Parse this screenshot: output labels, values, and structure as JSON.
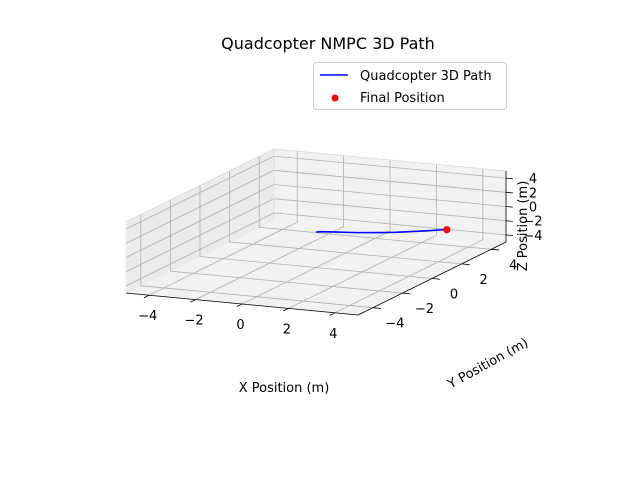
{
  "chart_data": {
    "type": "line",
    "projection": "3d",
    "title": "Quadcopter NMPC 3D Path",
    "xlabel": "X Position (m)",
    "ylabel": "Y Position (m)",
    "zlabel": "Z Position (m)",
    "xlim": [
      -5,
      5
    ],
    "ylim": [
      -5,
      5
    ],
    "zlim": [
      -5,
      5
    ],
    "x_ticks": [
      "−4",
      "−2",
      "0",
      "2",
      "4"
    ],
    "y_ticks": [
      "−4",
      "−2",
      "0",
      "2",
      "4"
    ],
    "z_ticks": [
      "−4",
      "−2",
      "0",
      "2",
      "4"
    ],
    "grid": true,
    "legend_position": "upper right",
    "series": [
      {
        "name": "Quadcopter 3D Path",
        "kind": "line",
        "color": "#0000ff",
        "x": [
          0.0,
          0.2,
          0.8,
          1.6,
          2.4,
          3.0,
          3.6,
          4.1,
          4.5,
          4.8,
          5.0
        ],
        "y": [
          0.0,
          0.05,
          0.15,
          0.3,
          0.5,
          0.65,
          0.8,
          0.9,
          0.95,
          0.98,
          1.0
        ],
        "z": [
          0.0,
          0.05,
          0.08,
          0.1,
          0.15,
          0.22,
          0.35,
          0.5,
          0.65,
          0.78,
          0.85
        ]
      },
      {
        "name": "Final Position",
        "kind": "scatter",
        "color": "#ff0000",
        "x": [
          5.0
        ],
        "y": [
          1.0
        ],
        "z": [
          0.85
        ]
      }
    ]
  }
}
